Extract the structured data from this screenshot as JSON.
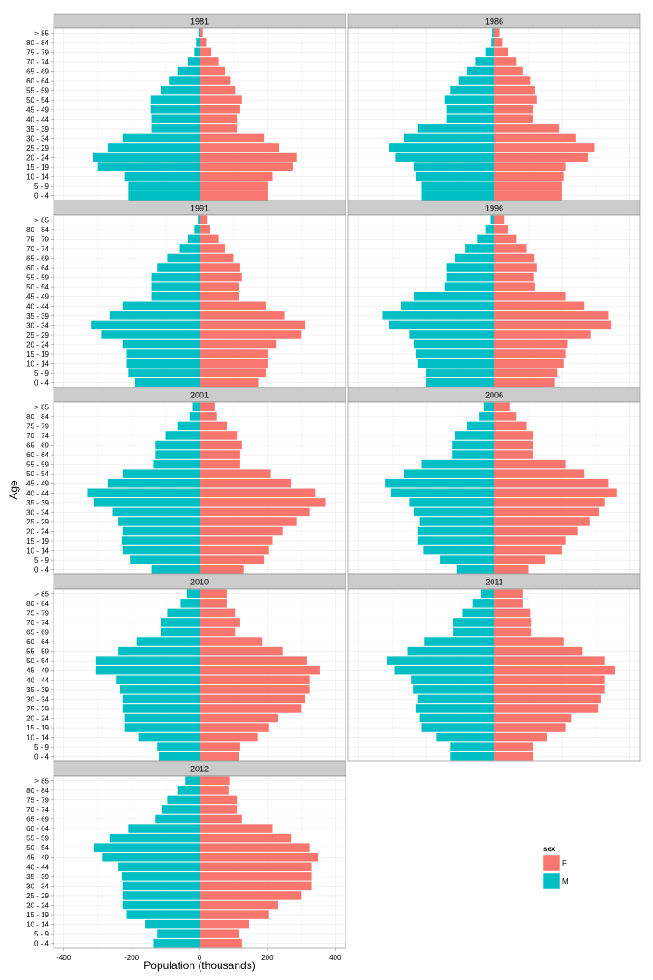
{
  "chart_data": {
    "type": "bar",
    "orientation": "horizontal",
    "layout": "population-pyramid-facets",
    "xlabel": "Population (thousands)",
    "ylabel": "Age",
    "xlim": [
      -430,
      430
    ],
    "xticks": [
      -400,
      -200,
      0,
      200,
      400
    ],
    "xtick_labels": [
      "-400",
      "-200",
      "0",
      "200",
      "400"
    ],
    "grid": true,
    "age_groups": [
      "0 - 4",
      "5 - 9",
      "10 - 14",
      "15 - 19",
      "20 - 24",
      "25 - 29",
      "30 - 34",
      "35 - 39",
      "40 - 44",
      "45 - 49",
      "50 - 54",
      "55 - 59",
      "60 - 64",
      "65 - 69",
      "70 - 74",
      "75 - 79",
      "80 - 84",
      "> 85"
    ],
    "legend": {
      "title": "sex",
      "placement": "right",
      "entries": [
        {
          "label": "F",
          "color": "#F8766D"
        },
        {
          "label": "M",
          "color": "#00BFC4"
        }
      ]
    },
    "facets": [
      {
        "year": "1981",
        "M": [
          -210,
          -210,
          -220,
          -300,
          -315,
          -270,
          -225,
          -140,
          -140,
          -145,
          -145,
          -115,
          -90,
          -65,
          -35,
          -15,
          -10,
          -3
        ],
        "F": [
          200,
          200,
          215,
          275,
          285,
          235,
          190,
          110,
          110,
          120,
          125,
          105,
          92,
          75,
          55,
          35,
          20,
          10
        ]
      },
      {
        "year": "1986",
        "M": [
          -215,
          -215,
          -230,
          -237,
          -290,
          -310,
          -265,
          -225,
          -140,
          -140,
          -145,
          -130,
          -105,
          -80,
          -55,
          -25,
          -10,
          -5
        ],
        "F": [
          200,
          200,
          205,
          210,
          275,
          295,
          240,
          190,
          115,
          115,
          125,
          120,
          105,
          85,
          65,
          40,
          25,
          15
        ]
      },
      {
        "year": "1991",
        "M": [
          -190,
          -210,
          -215,
          -215,
          -225,
          -290,
          -320,
          -265,
          -225,
          -140,
          -140,
          -140,
          -125,
          -95,
          -60,
          -35,
          -15,
          -5
        ],
        "F": [
          175,
          195,
          200,
          200,
          225,
          300,
          310,
          250,
          195,
          115,
          115,
          125,
          120,
          100,
          75,
          55,
          30,
          22
        ]
      },
      {
        "year": "1996",
        "M": [
          -200,
          -200,
          -225,
          -230,
          -235,
          -250,
          -310,
          -330,
          -275,
          -235,
          -145,
          -140,
          -140,
          -115,
          -85,
          -50,
          -25,
          -12
        ],
        "F": [
          178,
          185,
          205,
          210,
          215,
          285,
          345,
          335,
          265,
          210,
          120,
          117,
          125,
          118,
          95,
          65,
          40,
          30
        ]
      },
      {
        "year": "2001",
        "M": [
          -140,
          -205,
          -225,
          -230,
          -225,
          -240,
          -255,
          -310,
          -330,
          -270,
          -225,
          -135,
          -130,
          -130,
          -100,
          -65,
          -30,
          -20
        ],
        "F": [
          130,
          190,
          205,
          215,
          245,
          285,
          325,
          370,
          340,
          270,
          210,
          120,
          120,
          125,
          110,
          80,
          50,
          45
        ]
      },
      {
        "year": "2006",
        "M": [
          -110,
          -160,
          -210,
          -225,
          -225,
          -220,
          -235,
          -250,
          -305,
          -320,
          -265,
          -215,
          -125,
          -125,
          -115,
          -80,
          -45,
          -30
        ],
        "F": [
          100,
          150,
          200,
          210,
          245,
          280,
          310,
          325,
          360,
          335,
          265,
          210,
          115,
          115,
          115,
          95,
          65,
          45
        ]
      },
      {
        "year": "2010",
        "M": [
          -120,
          -125,
          -180,
          -220,
          -220,
          -225,
          -225,
          -235,
          -245,
          -305,
          -305,
          -240,
          -185,
          -115,
          -115,
          -95,
          -55,
          -38
        ],
        "F": [
          115,
          120,
          170,
          205,
          230,
          300,
          310,
          325,
          325,
          355,
          315,
          245,
          185,
          105,
          120,
          105,
          80,
          80
        ]
      },
      {
        "year": "2011",
        "M": [
          -130,
          -130,
          -170,
          -215,
          -220,
          -230,
          -225,
          -240,
          -245,
          -295,
          -315,
          -255,
          -205,
          -120,
          -120,
          -95,
          -65,
          -40
        ],
        "F": [
          115,
          115,
          155,
          210,
          228,
          305,
          315,
          325,
          325,
          355,
          325,
          260,
          205,
          110,
          110,
          105,
          85,
          85
        ]
      },
      {
        "year": "2012",
        "M": [
          -135,
          -125,
          -160,
          -215,
          -225,
          -225,
          -225,
          -230,
          -240,
          -285,
          -310,
          -265,
          -210,
          -130,
          -110,
          -95,
          -65,
          -42
        ],
        "F": [
          125,
          115,
          145,
          205,
          230,
          300,
          330,
          330,
          330,
          350,
          325,
          270,
          215,
          125,
          110,
          110,
          85,
          90
        ]
      }
    ]
  }
}
